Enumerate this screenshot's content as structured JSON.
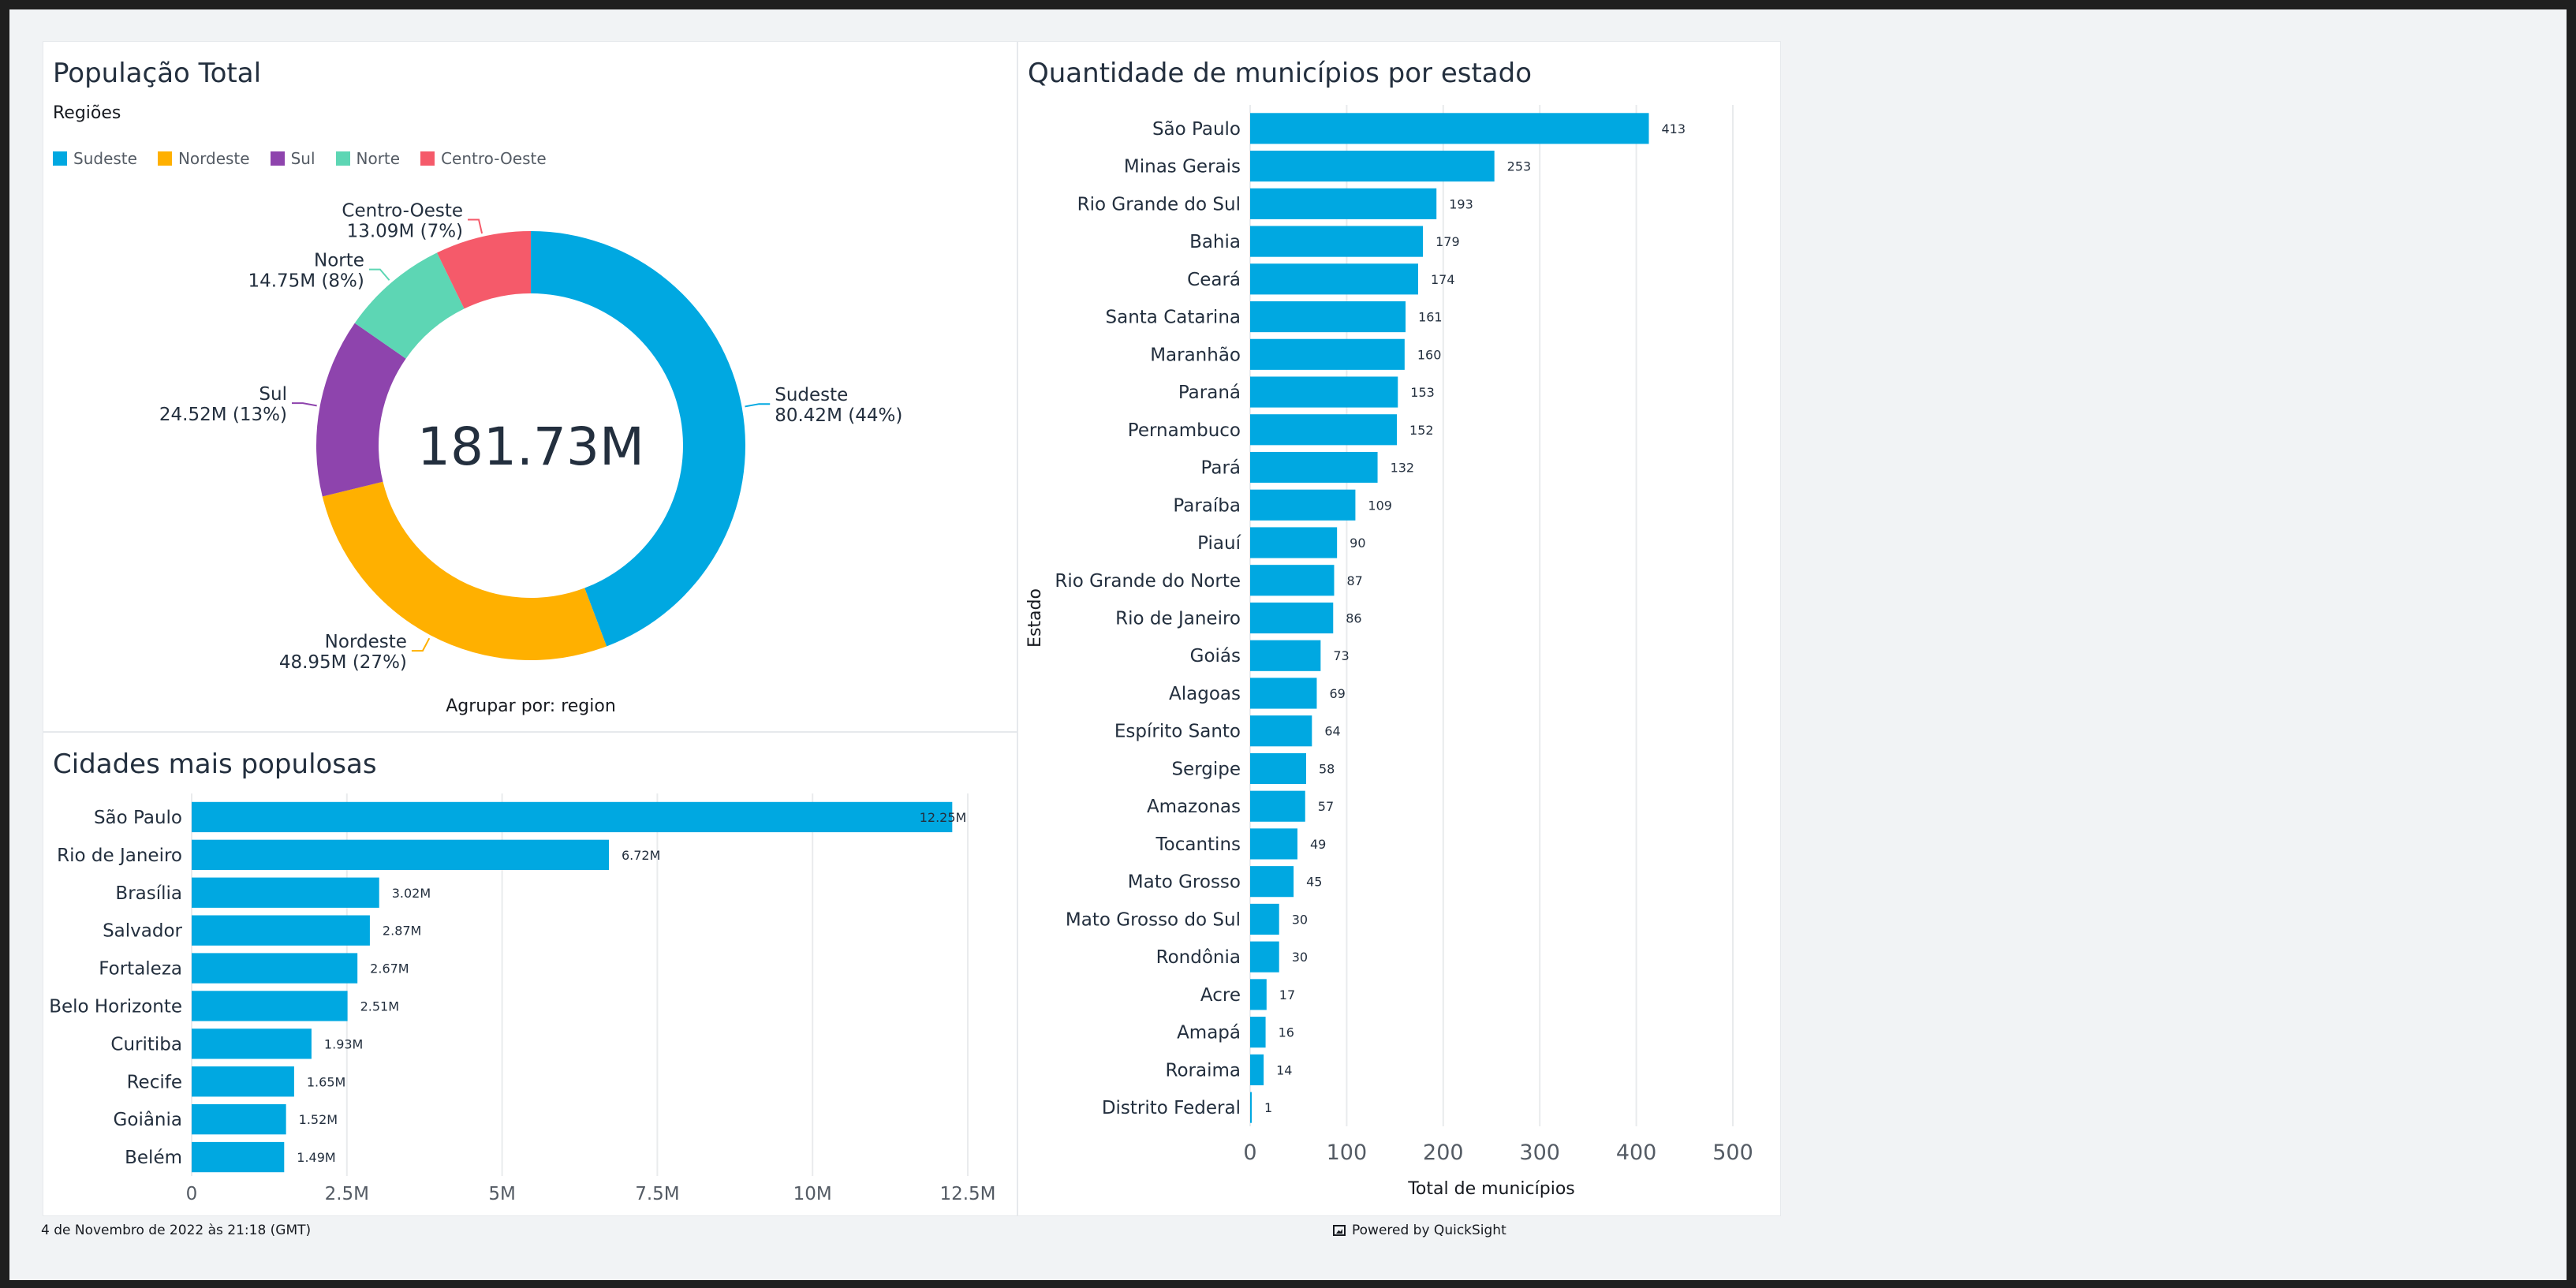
{
  "donut": {
    "title": "População Total",
    "legend_title": "Regiões",
    "center_label": "181.73M",
    "footer": "Agrupar por: region",
    "chart_data": {
      "type": "pie",
      "title": "População Total",
      "legend_title": "Regiões",
      "legend_position": "top-left",
      "total": "181.73M",
      "categories": [
        "Sudeste",
        "Nordeste",
        "Sul",
        "Norte",
        "Centro-Oeste"
      ],
      "values": [
        80.42,
        48.95,
        24.52,
        14.75,
        13.09
      ],
      "labels": [
        "80.42M (44%)",
        "48.95M (27%)",
        "24.52M (13%)",
        "14.75M (8%)",
        "13.09M (7%)"
      ],
      "colors": [
        "#00a8e1",
        "#ffb000",
        "#8e44ad",
        "#5dd6b4",
        "#f55a6a"
      ]
    }
  },
  "cities": {
    "title": "Cidades mais populosas",
    "chart_data": {
      "type": "bar",
      "orientation": "horizontal",
      "title": "Cidades mais populosas",
      "categories": [
        "São Paulo",
        "Rio de Janeiro",
        "Brasília",
        "Salvador",
        "Fortaleza",
        "Belo Horizonte",
        "Curitiba",
        "Recife",
        "Goiânia",
        "Belém"
      ],
      "values": [
        12.25,
        6.72,
        3.02,
        2.87,
        2.67,
        2.51,
        1.93,
        1.65,
        1.52,
        1.49
      ],
      "value_labels": [
        "12.25M",
        "6.72M",
        "3.02M",
        "2.87M",
        "2.67M",
        "2.51M",
        "1.93M",
        "1.65M",
        "1.52M",
        "1.49M"
      ],
      "xlim": [
        0,
        12.5
      ],
      "xticks": [
        0,
        2.5,
        5,
        7.5,
        10,
        12.5
      ],
      "xtick_labels": [
        "0",
        "2.5M",
        "5M",
        "7.5M",
        "10M",
        "12.5M"
      ],
      "grid": true,
      "color": "#00a8e1"
    }
  },
  "municipios": {
    "title": "Quantidade de municípios por estado",
    "chart_data": {
      "type": "bar",
      "orientation": "horizontal",
      "title": "Quantidade de municípios por estado",
      "ylabel": "Estado",
      "xlabel": "Total de municípios",
      "categories": [
        "São Paulo",
        "Minas Gerais",
        "Rio Grande do Sul",
        "Bahia",
        "Ceará",
        "Santa Catarina",
        "Maranhão",
        "Paraná",
        "Pernambuco",
        "Pará",
        "Paraíba",
        "Piauí",
        "Rio Grande do Norte",
        "Rio de Janeiro",
        "Goiás",
        "Alagoas",
        "Espírito Santo",
        "Sergipe",
        "Amazonas",
        "Tocantins",
        "Mato Grosso",
        "Mato Grosso do Sul",
        "Rondônia",
        "Acre",
        "Amapá",
        "Roraima",
        "Distrito Federal"
      ],
      "values": [
        413,
        253,
        193,
        179,
        174,
        161,
        160,
        153,
        152,
        132,
        109,
        90,
        87,
        86,
        73,
        69,
        64,
        58,
        57,
        49,
        45,
        30,
        30,
        17,
        16,
        14,
        1
      ],
      "xlim": [
        0,
        500
      ],
      "xticks": [
        0,
        100,
        200,
        300,
        400,
        500
      ],
      "xtick_labels": [
        "0",
        "100",
        "200",
        "300",
        "400",
        "500"
      ],
      "grid": true,
      "color": "#00a8e1"
    }
  },
  "footer": {
    "timestamp": "4 de Novembro de 2022 às 21:18 (GMT)",
    "powered_by": "Powered by QuickSight"
  }
}
